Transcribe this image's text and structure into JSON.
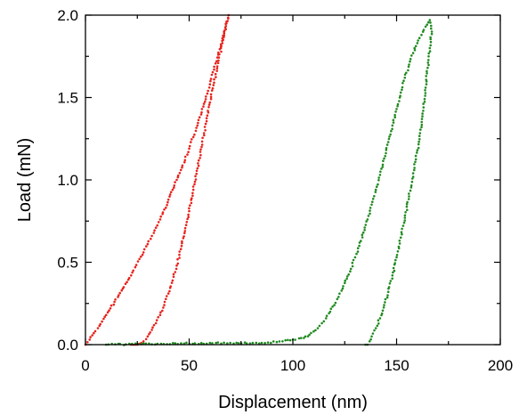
{
  "chart_data": {
    "type": "scatter",
    "xlabel": "Displacement  (nm)",
    "ylabel": "Load (mN)",
    "xlim": [
      0,
      200
    ],
    "ylim": [
      0,
      2.0
    ],
    "x_ticks": [
      0,
      50,
      100,
      150,
      200
    ],
    "y_ticks": [
      0.0,
      0.5,
      1.0,
      1.5,
      2.0
    ],
    "x_tick_labels": [
      "0",
      "50",
      "100",
      "150",
      "200"
    ],
    "y_tick_labels": [
      "0.0",
      "0.5",
      "1.0",
      "1.5",
      "2.0"
    ],
    "grid": false,
    "series": [
      {
        "color": "#e8211a",
        "points": [
          [
            0,
            0.0
          ],
          [
            2,
            0.03
          ],
          [
            4,
            0.07
          ],
          [
            6,
            0.1
          ],
          [
            8,
            0.14
          ],
          [
            10,
            0.18
          ],
          [
            12,
            0.22
          ],
          [
            14,
            0.26
          ],
          [
            16,
            0.3
          ],
          [
            18,
            0.34
          ],
          [
            20,
            0.38
          ],
          [
            22,
            0.42
          ],
          [
            24,
            0.47
          ],
          [
            26,
            0.52
          ],
          [
            28,
            0.56
          ],
          [
            30,
            0.61
          ],
          [
            32,
            0.66
          ],
          [
            34,
            0.71
          ],
          [
            36,
            0.76
          ],
          [
            38,
            0.82
          ],
          [
            40,
            0.88
          ],
          [
            42,
            0.94
          ],
          [
            44,
            1.0
          ],
          [
            46,
            1.06
          ],
          [
            48,
            1.12
          ],
          [
            50,
            1.19
          ],
          [
            52,
            1.26
          ],
          [
            54,
            1.33
          ],
          [
            56,
            1.41
          ],
          [
            58,
            1.49
          ],
          [
            60,
            1.58
          ],
          [
            62,
            1.67
          ],
          [
            64,
            1.76
          ],
          [
            66,
            1.86
          ],
          [
            68,
            1.96
          ],
          [
            69,
            2.0
          ],
          [
            68,
            1.95
          ],
          [
            66,
            1.83
          ],
          [
            64,
            1.71
          ],
          [
            62,
            1.59
          ],
          [
            60,
            1.47
          ],
          [
            58,
            1.34
          ],
          [
            56,
            1.2
          ],
          [
            54,
            1.07
          ],
          [
            52,
            0.94
          ],
          [
            50,
            0.81
          ],
          [
            48,
            0.69
          ],
          [
            46,
            0.58
          ],
          [
            44,
            0.48
          ],
          [
            42,
            0.39
          ],
          [
            40,
            0.31
          ],
          [
            38,
            0.24
          ],
          [
            36,
            0.18
          ],
          [
            34,
            0.13
          ],
          [
            32,
            0.09
          ],
          [
            30,
            0.05
          ],
          [
            28,
            0.02
          ],
          [
            26,
            0.005
          ],
          [
            25,
            0.0
          ],
          [
            24,
            0.0
          ],
          [
            23,
            0.0
          ],
          [
            22,
            0.0
          ]
        ]
      },
      {
        "color": "#1e8a1e",
        "points": [
          [
            10,
            0.0
          ],
          [
            60,
            0.01
          ],
          [
            85,
            0.01
          ],
          [
            95,
            0.02
          ],
          [
            100,
            0.03
          ],
          [
            104,
            0.04
          ],
          [
            106,
            0.05
          ],
          [
            108,
            0.06
          ],
          [
            110,
            0.08
          ],
          [
            112,
            0.1
          ],
          [
            114,
            0.13
          ],
          [
            116,
            0.16
          ],
          [
            118,
            0.2
          ],
          [
            120,
            0.24
          ],
          [
            122,
            0.29
          ],
          [
            124,
            0.34
          ],
          [
            126,
            0.4
          ],
          [
            128,
            0.46
          ],
          [
            130,
            0.53
          ],
          [
            132,
            0.6
          ],
          [
            134,
            0.68
          ],
          [
            136,
            0.76
          ],
          [
            138,
            0.85
          ],
          [
            140,
            0.94
          ],
          [
            142,
            1.03
          ],
          [
            144,
            1.13
          ],
          [
            146,
            1.23
          ],
          [
            148,
            1.33
          ],
          [
            150,
            1.43
          ],
          [
            152,
            1.53
          ],
          [
            154,
            1.62
          ],
          [
            156,
            1.7
          ],
          [
            158,
            1.77
          ],
          [
            160,
            1.83
          ],
          [
            162,
            1.88
          ],
          [
            164,
            1.93
          ],
          [
            166,
            1.97
          ],
          [
            167,
            1.9
          ],
          [
            166,
            1.8
          ],
          [
            165,
            1.68
          ],
          [
            164,
            1.56
          ],
          [
            163,
            1.44
          ],
          [
            162,
            1.32
          ],
          [
            160,
            1.18
          ],
          [
            158,
            1.04
          ],
          [
            156,
            0.9
          ],
          [
            154,
            0.77
          ],
          [
            152,
            0.65
          ],
          [
            150,
            0.53
          ],
          [
            148,
            0.42
          ],
          [
            146,
            0.32
          ],
          [
            144,
            0.24
          ],
          [
            142,
            0.16
          ],
          [
            140,
            0.1
          ],
          [
            138,
            0.05
          ],
          [
            137,
            0.02
          ],
          [
            136,
            0.0
          ],
          [
            135,
            0.0
          ]
        ]
      }
    ]
  }
}
